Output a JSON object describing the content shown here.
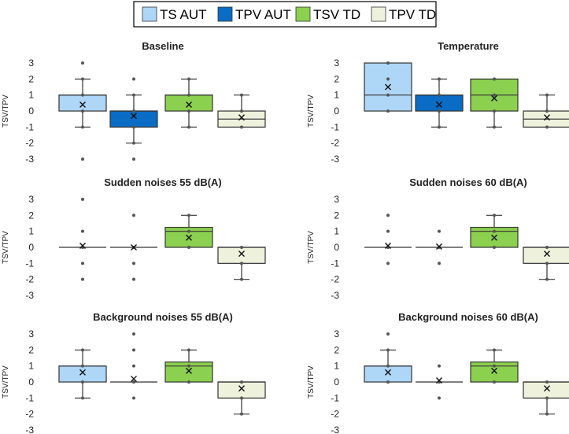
{
  "legend": [
    {
      "name": "TS AUT",
      "color": "#aed6f7"
    },
    {
      "name": "TPV AUT",
      "color": "#0a6cc4"
    },
    {
      "name": "TSV TD",
      "color": "#8cd050"
    },
    {
      "name": "TPV TD",
      "color": "#eef2dc"
    }
  ],
  "chart_data": [
    {
      "type": "box",
      "title": "Baseline",
      "ylabel": "TSV/TPV",
      "yticks": [
        3,
        2,
        1,
        0,
        -1,
        -2,
        -3
      ],
      "ylim": [
        -3,
        3
      ],
      "series": [
        {
          "name": "TS AUT",
          "q1": 0,
          "median": 1,
          "q3": 1,
          "whisker_low": -1,
          "whisker_high": 2,
          "mean": 0.4,
          "points": [
            3,
            2,
            1,
            0,
            -1,
            -3
          ]
        },
        {
          "name": "TPV AUT",
          "q1": -1,
          "median": 0,
          "q3": 0,
          "whisker_low": -2,
          "whisker_high": 1,
          "mean": -0.3,
          "points": [
            2,
            1,
            0,
            -1,
            -2,
            -3
          ]
        },
        {
          "name": "TSV TD",
          "q1": 0,
          "median": 1,
          "q3": 1,
          "whisker_low": -1,
          "whisker_high": 2,
          "mean": 0.4,
          "points": [
            2,
            1,
            0,
            -1
          ]
        },
        {
          "name": "TPV TD",
          "q1": -1,
          "median": -0.5,
          "q3": 0,
          "whisker_low": -1,
          "whisker_high": 1,
          "mean": -0.4,
          "points": [
            1,
            0,
            -1
          ]
        }
      ]
    },
    {
      "type": "box",
      "title": "Temperature",
      "ylabel": "TSV/TPV",
      "yticks": [
        3,
        2,
        1,
        0,
        -1,
        -2,
        -3
      ],
      "ylim": [
        -3,
        3
      ],
      "series": [
        {
          "name": "TS AUT",
          "q1": 0,
          "median": 1,
          "q3": 3,
          "whisker_low": 0,
          "whisker_high": 3,
          "mean": 1.5,
          "points": [
            3,
            2,
            1,
            0
          ]
        },
        {
          "name": "TPV AUT",
          "q1": 0,
          "median": 1,
          "q3": 1,
          "whisker_low": -1,
          "whisker_high": 2,
          "mean": 0.4,
          "points": [
            2,
            1,
            0,
            -1
          ]
        },
        {
          "name": "TSV TD",
          "q1": 0,
          "median": 1,
          "q3": 2,
          "whisker_low": -1,
          "whisker_high": 2,
          "mean": 0.8,
          "points": [
            2,
            1,
            0,
            -1
          ]
        },
        {
          "name": "TPV TD",
          "q1": -1,
          "median": -0.5,
          "q3": 0,
          "whisker_low": -1,
          "whisker_high": 1,
          "mean": -0.4,
          "points": [
            1,
            0,
            -1
          ]
        }
      ]
    },
    {
      "type": "box",
      "title": "Sudden noises 55 dB(A)",
      "ylabel": "TSV/TPV",
      "yticks": [
        3,
        2,
        1,
        0,
        -1,
        -2,
        -3
      ],
      "ylim": [
        -3,
        3
      ],
      "series": [
        {
          "name": "TS AUT",
          "q1": 0,
          "median": 0,
          "q3": 0,
          "whisker_low": 0,
          "whisker_high": 0,
          "mean": 0.1,
          "points": [
            3,
            1,
            0,
            -1,
            -2
          ]
        },
        {
          "name": "TPV AUT",
          "q1": 0,
          "median": 0,
          "q3": 0,
          "whisker_low": 0,
          "whisker_high": 0,
          "mean": 0,
          "points": [
            2,
            0,
            -1,
            -2
          ]
        },
        {
          "name": "TSV TD",
          "q1": 0,
          "median": 1,
          "q3": 1.25,
          "whisker_low": 0,
          "whisker_high": 2,
          "mean": 0.6,
          "points": [
            2,
            1,
            0
          ]
        },
        {
          "name": "TPV TD",
          "q1": -1,
          "median": 0,
          "q3": 0,
          "whisker_low": -2,
          "whisker_high": 0,
          "mean": -0.4,
          "points": [
            0,
            -1,
            -2
          ]
        }
      ]
    },
    {
      "type": "box",
      "title": "Sudden noises 60 dB(A)",
      "ylabel": "TSV/TPV",
      "yticks": [
        3,
        2,
        1,
        0,
        -1,
        -2,
        -3
      ],
      "ylim": [
        -3,
        3
      ],
      "series": [
        {
          "name": "TS AUT",
          "q1": 0,
          "median": 0,
          "q3": 0,
          "whisker_low": 0,
          "whisker_high": 0,
          "mean": 0.1,
          "points": [
            2,
            1,
            0,
            -1
          ]
        },
        {
          "name": "TPV AUT",
          "q1": 0,
          "median": 0,
          "q3": 0,
          "whisker_low": 0,
          "whisker_high": 0,
          "mean": 0.05,
          "points": [
            1,
            0,
            -1
          ]
        },
        {
          "name": "TSV TD",
          "q1": 0,
          "median": 1,
          "q3": 1.25,
          "whisker_low": 0,
          "whisker_high": 2,
          "mean": 0.6,
          "points": [
            2,
            1,
            0
          ]
        },
        {
          "name": "TPV TD",
          "q1": -1,
          "median": 0,
          "q3": 0,
          "whisker_low": -2,
          "whisker_high": 0,
          "mean": -0.4,
          "points": [
            0,
            -1,
            -2
          ]
        }
      ]
    },
    {
      "type": "box",
      "title": "Background noises 55 dB(A)",
      "ylabel": "TSV/TPV",
      "yticks": [
        3,
        2,
        1,
        0,
        -1,
        -2,
        -3
      ],
      "ylim": [
        -3,
        3
      ],
      "series": [
        {
          "name": "TS AUT",
          "q1": 0,
          "median": 1,
          "q3": 1,
          "whisker_low": -1,
          "whisker_high": 2,
          "mean": 0.6,
          "points": [
            2,
            1,
            0,
            -1
          ]
        },
        {
          "name": "TPV AUT",
          "q1": 0,
          "median": 0,
          "q3": 0,
          "whisker_low": 0,
          "whisker_high": 0,
          "mean": 0.2,
          "points": [
            3,
            2,
            1,
            0,
            -1
          ]
        },
        {
          "name": "TSV TD",
          "q1": 0,
          "median": 1,
          "q3": 1.25,
          "whisker_low": 0,
          "whisker_high": 2,
          "mean": 0.7,
          "points": [
            2,
            1,
            0
          ]
        },
        {
          "name": "TPV TD",
          "q1": -1,
          "median": 0,
          "q3": 0,
          "whisker_low": -2,
          "whisker_high": 0,
          "mean": -0.4,
          "points": [
            0,
            -1,
            -2
          ]
        }
      ]
    },
    {
      "type": "box",
      "title": "Background noises 60 dB(A)",
      "ylabel": "TSV/TPV",
      "yticks": [
        3,
        2,
        1,
        0,
        -1,
        -2,
        -3
      ],
      "ylim": [
        -3,
        3
      ],
      "series": [
        {
          "name": "TS AUT",
          "q1": 0,
          "median": 1,
          "q3": 1,
          "whisker_low": 0,
          "whisker_high": 2,
          "mean": 0.6,
          "points": [
            3,
            2,
            1,
            0
          ]
        },
        {
          "name": "TPV AUT",
          "q1": 0,
          "median": 0,
          "q3": 0,
          "whisker_low": 0,
          "whisker_high": 0,
          "mean": 0.1,
          "points": [
            1,
            0,
            -1
          ]
        },
        {
          "name": "TSV TD",
          "q1": 0,
          "median": 1,
          "q3": 1.25,
          "whisker_low": 0,
          "whisker_high": 2,
          "mean": 0.7,
          "points": [
            2,
            1,
            0
          ]
        },
        {
          "name": "TPV TD",
          "q1": -1,
          "median": 0,
          "q3": 0,
          "whisker_low": -2,
          "whisker_high": 0,
          "mean": -0.4,
          "points": [
            0,
            -1,
            -2
          ]
        }
      ]
    }
  ]
}
